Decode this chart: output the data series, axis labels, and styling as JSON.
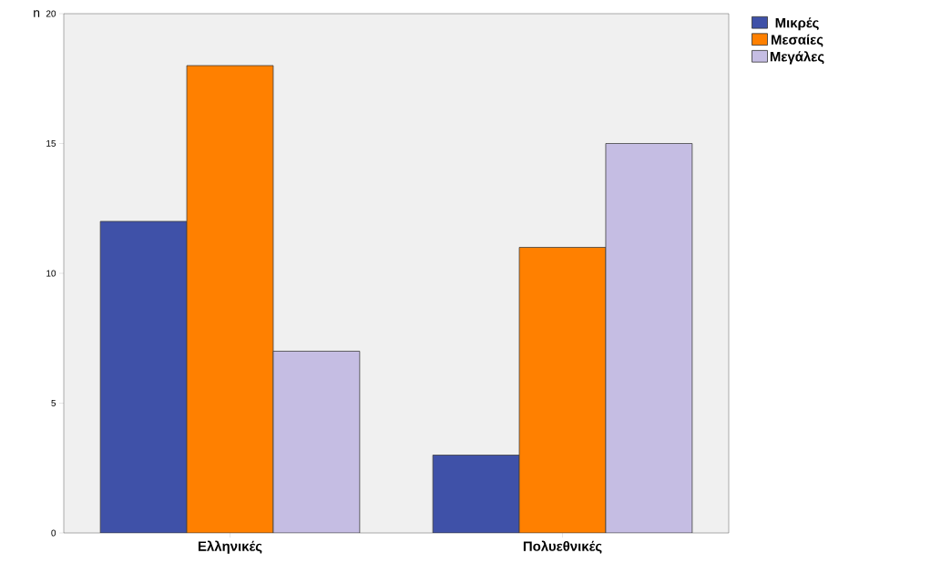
{
  "chart_data": {
    "type": "bar",
    "ylabel": "n",
    "categories": [
      "Ελληνικές",
      "Πολυεθνικές"
    ],
    "series": [
      {
        "name": "Μικρές",
        "color": "#3f51a8",
        "values": [
          12,
          3
        ]
      },
      {
        "name": "Μεσαίες",
        "color": "#ff8000",
        "values": [
          18,
          11
        ]
      },
      {
        "name": "Μεγάλες",
        "color": "#c5bde3",
        "values": [
          7,
          15
        ]
      }
    ],
    "ylim": [
      0,
      20
    ],
    "yticks": [
      0,
      5,
      10,
      15,
      20
    ],
    "legend": "top right"
  }
}
